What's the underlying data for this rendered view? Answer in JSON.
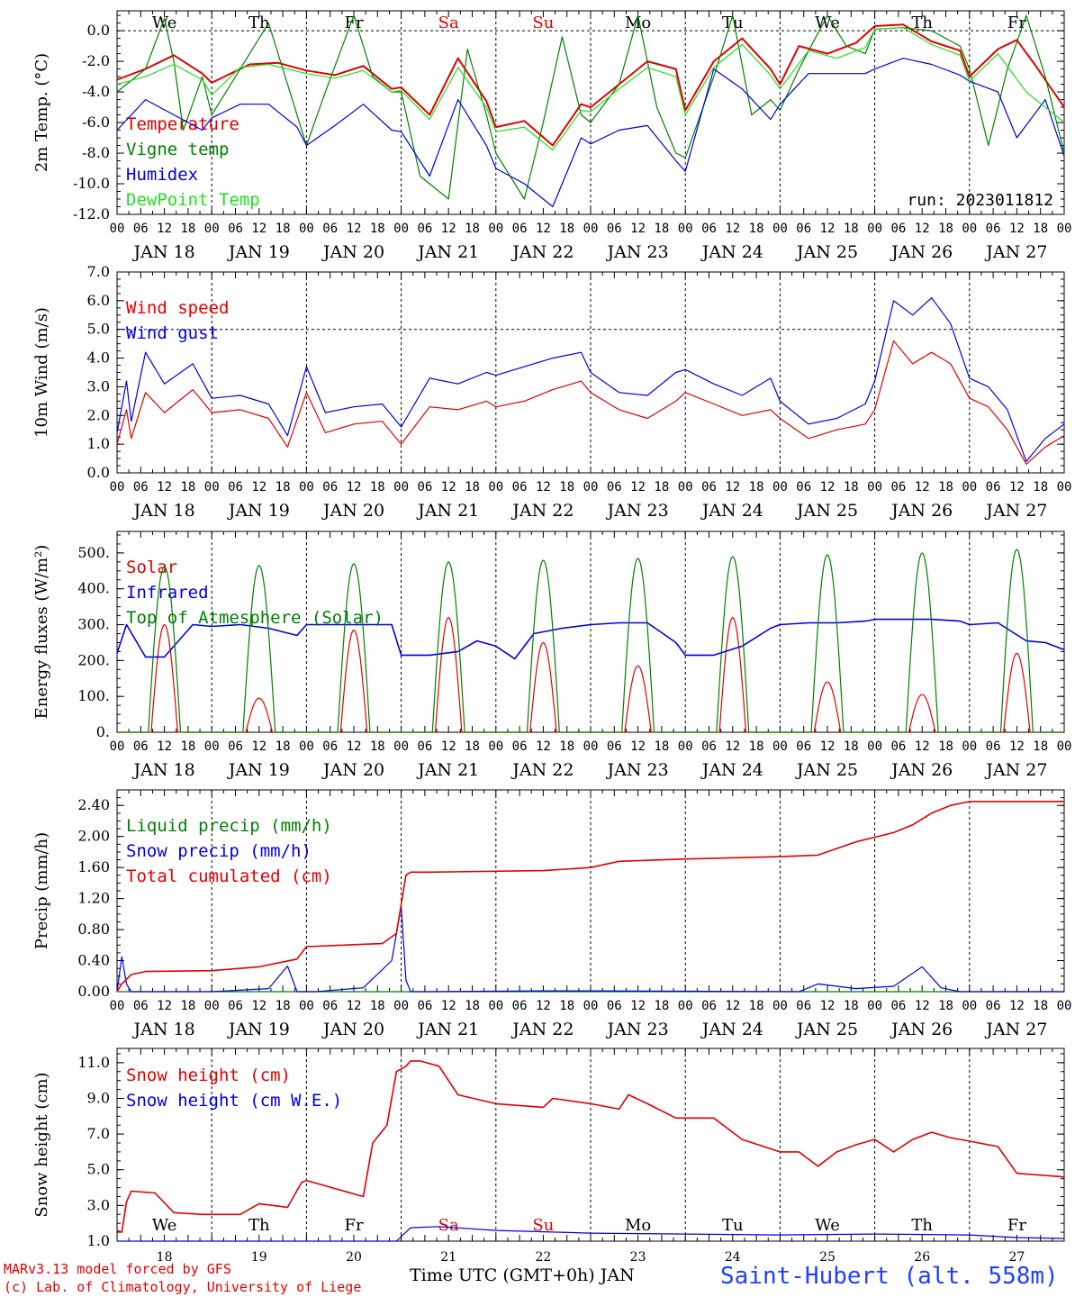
{
  "station": "Saint-Hubert (alt. 558m)",
  "footer": {
    "line1": "MARv3.13 model forced by GFS",
    "line2": "(c) Lab. of Climatology, University of Liege"
  },
  "x_axis_label": "Time UTC (GMT+0h) JAN",
  "run_label": "run: 2023011812",
  "days": [
    "JAN 18",
    "JAN 19",
    "JAN 20",
    "JAN 21",
    "JAN 22",
    "JAN 23",
    "JAN 24",
    "JAN 25",
    "JAN 26",
    "JAN 27"
  ],
  "day_numbers": [
    "18",
    "19",
    "20",
    "21",
    "22",
    "23",
    "24",
    "25",
    "26",
    "27"
  ],
  "weekdays": [
    "We",
    "Th",
    "Fr",
    "Sa",
    "Su",
    "Mo",
    "Tu",
    "We",
    "Th",
    "Fr"
  ],
  "weekend_color": "#e00000",
  "hour_ticks": [
    "00",
    "06",
    "12",
    "18"
  ],
  "chart_data": [
    {
      "type": "line",
      "ylabel": "2m Temp. (°C)",
      "ylim": [
        -12,
        1.3
      ],
      "yticks": [
        "0.0",
        "-2.0",
        "-4.0",
        "-6.0",
        "-8.0",
        "-10.0",
        "-12.0"
      ],
      "ytick_values": [
        0,
        -2,
        -4,
        -6,
        -8,
        -10,
        -12
      ],
      "refline": 0,
      "series": [
        {
          "name": "Temperature",
          "color": "#e00000",
          "width": 2,
          "x": [
            0,
            0.3,
            0.6,
            0.9,
            1,
            1.4,
            1.7,
            2,
            2.3,
            2.6,
            2.9,
            3,
            3.3,
            3.6,
            3.9,
            4,
            4.3,
            4.6,
            4.9,
            5,
            5.3,
            5.6,
            5.9,
            6,
            6.3,
            6.6,
            6.9,
            7,
            7.2,
            7.5,
            7.8,
            8,
            8.3,
            8.6,
            8.9,
            9,
            9.3,
            9.5,
            9.7,
            10
          ],
          "y": [
            -3.2,
            -2.5,
            -1.6,
            -2.8,
            -3.4,
            -2.2,
            -2.1,
            -2.6,
            -2.9,
            -2.3,
            -3.8,
            -3.7,
            -5.5,
            -1.8,
            -4.6,
            -6.3,
            -5.9,
            -7.5,
            -4.8,
            -5.0,
            -3.5,
            -2.0,
            -2.5,
            -5.2,
            -2.0,
            -0.5,
            -2.5,
            -3.5,
            -1.0,
            -1.5,
            -0.8,
            0.3,
            0.4,
            -0.7,
            -1.3,
            -3.0,
            -1.2,
            -0.6,
            -2.3,
            -5.0
          ]
        },
        {
          "name": "Vigne temp",
          "color": "#008000",
          "width": 1.2,
          "x": [
            0,
            0.3,
            0.5,
            0.6,
            0.7,
            0.9,
            1,
            1.3,
            1.6,
            1.8,
            2,
            2.2,
            2.5,
            2.7,
            2.9,
            3,
            3.2,
            3.5,
            3.7,
            3.9,
            4,
            4.3,
            4.5,
            4.7,
            4.9,
            5,
            5.3,
            5.5,
            5.7,
            5.9,
            6,
            6.3,
            6.5,
            6.7,
            6.9,
            7,
            7.2,
            7.5,
            7.7,
            7.9,
            8,
            8.3,
            8.6,
            8.9,
            9,
            9.2,
            9.4,
            9.6,
            9.8,
            10
          ],
          "y": [
            -4,
            -2.5,
            0.8,
            -2,
            -6.5,
            -3,
            -5.5,
            -2.5,
            0.5,
            -3.5,
            -7.5,
            -4,
            1,
            -3,
            -4,
            -4,
            -9.5,
            -11,
            -1.2,
            -5.5,
            -8,
            -11,
            -6,
            -0.4,
            -5.5,
            -6,
            -3.5,
            1,
            -5,
            -8,
            -8.3,
            -3,
            1,
            -5.5,
            -4.5,
            -5.2,
            -2.5,
            1,
            -1,
            -1.5,
            0.1,
            0.2,
            0,
            -1,
            -2.5,
            -7.5,
            -2.5,
            1,
            -3,
            -8
          ]
        },
        {
          "name": "Humidex",
          "color": "#0000e0",
          "width": 1.2,
          "x": [
            0,
            0.3,
            0.6,
            0.9,
            1,
            1.3,
            1.6,
            1.9,
            2,
            2.3,
            2.6,
            2.9,
            3,
            3.3,
            3.6,
            3.9,
            4,
            4.3,
            4.6,
            4.9,
            5,
            5.3,
            5.6,
            5.9,
            6,
            6.3,
            6.6,
            6.9,
            7,
            7.3,
            7.6,
            7.9,
            8,
            8.3,
            8.6,
            8.9,
            9,
            9.3,
            9.5,
            9.8,
            10
          ],
          "y": [
            -6.5,
            -4.5,
            -5.5,
            -6.5,
            -5.7,
            -4.8,
            -4.8,
            -6.3,
            -7.5,
            -6.2,
            -4.8,
            -6.5,
            -6.6,
            -9.5,
            -4.5,
            -7.5,
            -9.0,
            -10,
            -11.5,
            -7.0,
            -7.4,
            -6.5,
            -6.2,
            -8.5,
            -9.2,
            -2.5,
            -3.8,
            -5.8,
            -4.8,
            -2.8,
            -2.8,
            -2.8,
            -2.5,
            -1.8,
            -2.2,
            -2.9,
            -3.3,
            -4.0,
            -7.0,
            -4.5,
            -8.2
          ]
        },
        {
          "name": "DewPoint Temp",
          "color": "#20e020",
          "width": 1.2,
          "x": [
            0,
            0.3,
            0.6,
            0.9,
            1,
            1.3,
            1.6,
            2,
            2.3,
            2.6,
            2.9,
            3,
            3.3,
            3.6,
            3.9,
            4,
            4.3,
            4.6,
            4.9,
            5,
            5.3,
            5.6,
            5.9,
            6,
            6.3,
            6.6,
            6.9,
            7,
            7.3,
            7.6,
            7.9,
            8,
            8.3,
            8.6,
            8.9,
            9,
            9.3,
            9.6,
            10
          ],
          "y": [
            -3.5,
            -3,
            -2.2,
            -3.2,
            -4.2,
            -2.4,
            -2.2,
            -2.8,
            -3.1,
            -2.6,
            -4,
            -3.9,
            -5.8,
            -2.4,
            -5,
            -6.6,
            -6.3,
            -7.8,
            -5.2,
            -5.3,
            -3.8,
            -2.4,
            -3,
            -5.5,
            -2.4,
            -0.9,
            -2.9,
            -3.8,
            -1.3,
            -1.8,
            -1.1,
            0.1,
            0.2,
            -0.9,
            -1.6,
            -3.3,
            -1.5,
            -4,
            -6
          ]
        }
      ]
    },
    {
      "type": "line",
      "ylabel": "10m Wind (m/s)",
      "ylim": [
        0,
        7
      ],
      "yticks": [
        "0.0",
        "1.0",
        "2.0",
        "3.0",
        "4.0",
        "5.0",
        "6.0",
        "7.0"
      ],
      "ytick_values": [
        0,
        1,
        2,
        3,
        4,
        5,
        6,
        7
      ],
      "refline": 5,
      "series": [
        {
          "name": "Wind speed",
          "color": "#e00000",
          "width": 1.2,
          "x": [
            0,
            0.1,
            0.15,
            0.3,
            0.5,
            0.8,
            1,
            1.3,
            1.6,
            1.8,
            2,
            2.2,
            2.5,
            2.8,
            3,
            3.3,
            3.6,
            3.9,
            4,
            4.3,
            4.6,
            4.9,
            5,
            5.3,
            5.6,
            5.9,
            6,
            6.3,
            6.6,
            6.9,
            7,
            7.3,
            7.6,
            7.9,
            8,
            8.2,
            8.4,
            8.6,
            8.8,
            9,
            9.2,
            9.4,
            9.6,
            9.8,
            10
          ],
          "y": [
            1,
            2.2,
            1.2,
            2.8,
            2.1,
            2.9,
            2.1,
            2.2,
            1.9,
            0.9,
            2.8,
            1.4,
            1.7,
            1.8,
            1.0,
            2.3,
            2.2,
            2.5,
            2.3,
            2.5,
            2.9,
            3.2,
            2.8,
            2.2,
            1.9,
            2.5,
            2.8,
            2.4,
            2.0,
            2.2,
            1.9,
            1.2,
            1.5,
            1.7,
            2.2,
            4.6,
            3.8,
            4.2,
            3.8,
            2.6,
            2.3,
            1.5,
            0.3,
            0.9,
            1.3
          ]
        },
        {
          "name": "Wind gust",
          "color": "#0000e0",
          "width": 1.2,
          "x": [
            0,
            0.1,
            0.15,
            0.3,
            0.5,
            0.8,
            1,
            1.3,
            1.6,
            1.8,
            2,
            2.2,
            2.5,
            2.8,
            3,
            3.3,
            3.6,
            3.9,
            4,
            4.3,
            4.6,
            4.9,
            5,
            5.3,
            5.6,
            5.9,
            6,
            6.3,
            6.6,
            6.9,
            7,
            7.3,
            7.6,
            7.9,
            8,
            8.2,
            8.4,
            8.6,
            8.8,
            9,
            9.2,
            9.4,
            9.6,
            9.8,
            10
          ],
          "y": [
            1.4,
            3.2,
            1.8,
            4.2,
            3.1,
            3.8,
            2.6,
            2.7,
            2.4,
            1.3,
            3.7,
            2.1,
            2.3,
            2.4,
            1.6,
            3.3,
            3.1,
            3.5,
            3.4,
            3.7,
            4.0,
            4.2,
            3.5,
            2.8,
            2.7,
            3.5,
            3.6,
            3.1,
            2.7,
            3.3,
            2.5,
            1.7,
            1.9,
            2.4,
            3.2,
            6.0,
            5.5,
            6.1,
            5.2,
            3.3,
            3.0,
            2.2,
            0.4,
            1.2,
            1.7
          ]
        }
      ]
    },
    {
      "type": "line",
      "ylabel": "Energy fluxes (W/m²)",
      "ylim": [
        0,
        560
      ],
      "yticks": [
        "0.",
        "100.",
        "200.",
        "300.",
        "400.",
        "500."
      ],
      "ytick_values": [
        0,
        100,
        200,
        300,
        400,
        500
      ],
      "series": [
        {
          "name": "Solar",
          "color": "#e00000",
          "width": 1.2,
          "diurnal_peaks": [
            300,
            95,
            285,
            320,
            250,
            185,
            320,
            140,
            105,
            220
          ]
        },
        {
          "name": "Infrared",
          "color": "#0000e0",
          "width": 1.6,
          "x": [
            0,
            0.1,
            0.3,
            0.5,
            0.8,
            1,
            1.3,
            1.6,
            1.9,
            2,
            2.3,
            2.6,
            2.9,
            3,
            3.3,
            3.6,
            3.8,
            4,
            4.2,
            4.4,
            4.7,
            5,
            5.3,
            5.6,
            5.9,
            6,
            6.3,
            6.6,
            6.9,
            7,
            7.3,
            7.6,
            7.9,
            8,
            8.3,
            8.6,
            8.9,
            9,
            9.3,
            9.6,
            9.8,
            10
          ],
          "y": [
            220,
            300,
            210,
            210,
            300,
            295,
            300,
            290,
            270,
            300,
            300,
            300,
            300,
            215,
            215,
            225,
            255,
            240,
            205,
            275,
            290,
            300,
            305,
            305,
            250,
            215,
            215,
            240,
            290,
            300,
            305,
            305,
            310,
            315,
            315,
            315,
            310,
            300,
            305,
            255,
            250,
            230
          ]
        },
        {
          "name": "Top of Atmesphere (Solar)",
          "color": "#008000",
          "width": 1.2,
          "diurnal_peaks": [
            462,
            465,
            470,
            475,
            480,
            485,
            490,
            495,
            500,
            510
          ]
        }
      ]
    },
    {
      "type": "line",
      "ylabel": "Precip (mm/h)",
      "ylim": [
        0,
        2.6
      ],
      "yticks": [
        "0.00",
        "0.40",
        "0.80",
        "1.20",
        "1.60",
        "2.00",
        "2.40"
      ],
      "ytick_values": [
        0,
        0.4,
        0.8,
        1.2,
        1.6,
        2.0,
        2.4
      ],
      "series": [
        {
          "name": "Liquid precip (mm/h)",
          "color": "#008000",
          "width": 1.2,
          "x": [
            0,
            10
          ],
          "y": [
            0,
            0
          ]
        },
        {
          "name": "Snow precip (mm/h)",
          "color": "#0000e0",
          "width": 1.2,
          "x": [
            0,
            0.05,
            0.1,
            0.15,
            0.3,
            1,
            1.6,
            1.8,
            1.9,
            2.1,
            2.6,
            2.9,
            3.0,
            3.05,
            3.1,
            3.3,
            4.5,
            5,
            7.2,
            7.4,
            7.8,
            8.2,
            8.5,
            8.7,
            8.9,
            10
          ],
          "y": [
            0,
            0.45,
            0.1,
            0,
            0,
            0,
            0.04,
            0.33,
            0,
            0,
            0.05,
            0.4,
            1.1,
            0.15,
            0,
            0,
            0.01,
            0.01,
            0,
            0.1,
            0.04,
            0.07,
            0.32,
            0.05,
            0,
            0
          ]
        },
        {
          "name": "Total cumulated (cm)",
          "color": "#e00000",
          "width": 1.6,
          "x": [
            0,
            0.05,
            0.15,
            0.3,
            1,
            1.5,
            1.9,
            2,
            2.8,
            2.95,
            3.05,
            3.1,
            3.3,
            4.5,
            5,
            5.3,
            6,
            7,
            7.4,
            7.8,
            8.2,
            8.4,
            8.6,
            8.8,
            9,
            10
          ],
          "y": [
            0,
            0.1,
            0.22,
            0.26,
            0.27,
            0.32,
            0.42,
            0.58,
            0.62,
            0.75,
            1.5,
            1.54,
            1.54,
            1.56,
            1.6,
            1.68,
            1.71,
            1.74,
            1.76,
            1.93,
            2.05,
            2.15,
            2.3,
            2.4,
            2.45,
            2.45
          ]
        }
      ]
    },
    {
      "type": "line",
      "ylabel": "Snow height (cm)",
      "ylim": [
        1,
        11.8
      ],
      "yticks": [
        "1.0",
        "3.0",
        "5.0",
        "7.0",
        "9.0",
        "11.0"
      ],
      "ytick_values": [
        1,
        3,
        5,
        7,
        9,
        11
      ],
      "show_weekdays": true,
      "series": [
        {
          "name": "Snow height (cm)",
          "color": "#e00000",
          "width": 1.6,
          "x": [
            0,
            0.05,
            0.1,
            0.15,
            0.4,
            0.6,
            0.9,
            1.3,
            1.5,
            1.8,
            1.95,
            2,
            2.6,
            2.7,
            2.85,
            2.95,
            3.05,
            3.1,
            3.2,
            3.4,
            3.6,
            4,
            4.5,
            4.6,
            5,
            5.3,
            5.4,
            5.6,
            5.9,
            6,
            6.1,
            6.3,
            6.6,
            7,
            7.2,
            7.4,
            7.6,
            7.8,
            8,
            8.2,
            8.4,
            8.6,
            8.8,
            9,
            9.3,
            9.5,
            10
          ],
          "y": [
            1.6,
            1.5,
            3.2,
            3.8,
            3.7,
            2.6,
            2.5,
            2.5,
            3.1,
            2.9,
            4.3,
            4.4,
            3.5,
            6.5,
            7.5,
            10.5,
            10.8,
            11.1,
            11.1,
            10.8,
            9.2,
            8.7,
            8.5,
            9.0,
            8.7,
            8.4,
            9.2,
            8.7,
            7.9,
            7.9,
            7.9,
            7.9,
            6.7,
            6.0,
            6.0,
            5.2,
            6.0,
            6.4,
            6.7,
            6.0,
            6.7,
            7.1,
            6.8,
            6.6,
            6.3,
            4.8,
            4.6
          ]
        },
        {
          "name": "Snow height (cm W.E.)",
          "color": "#0000e0",
          "width": 1.2,
          "x": [
            0,
            2.95,
            3.1,
            3.4,
            4,
            5,
            6,
            7,
            8,
            9,
            9.5,
            10
          ],
          "y": [
            1,
            1,
            1.75,
            1.82,
            1.6,
            1.45,
            1.4,
            1.35,
            1.4,
            1.35,
            1.2,
            1.15
          ]
        }
      ]
    }
  ]
}
